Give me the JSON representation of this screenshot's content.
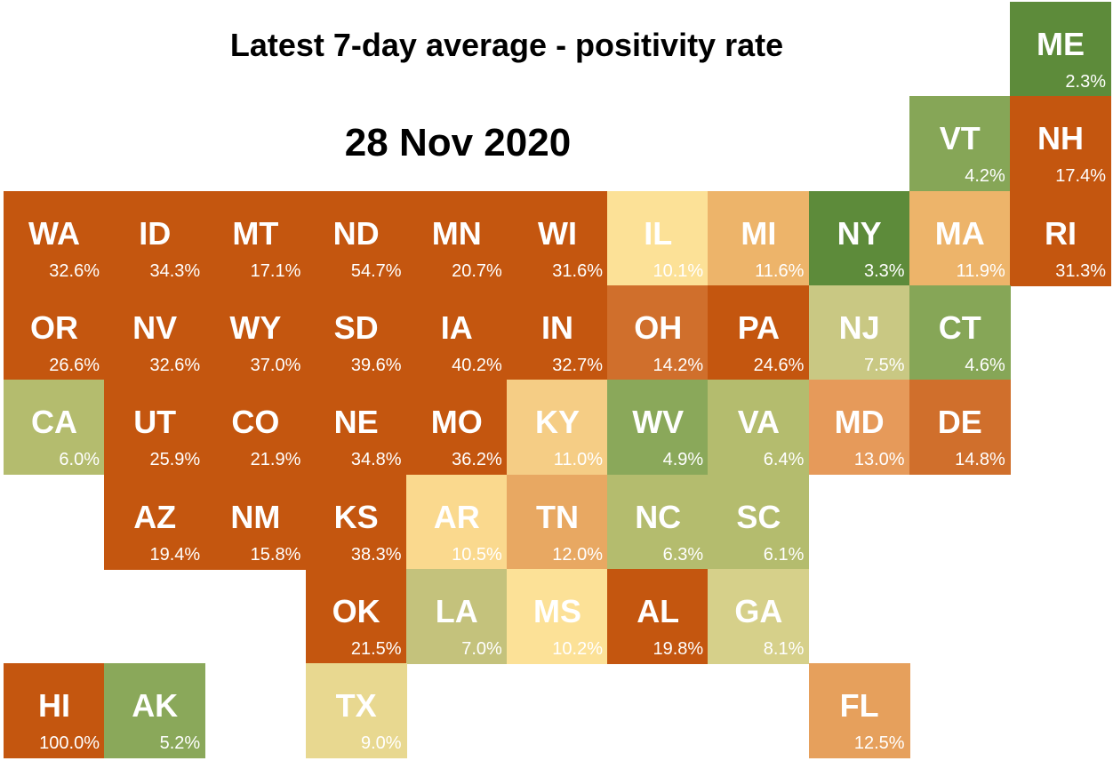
{
  "title": "Latest 7-day average - positivity rate",
  "date": "28 Nov 2020",
  "colors": {
    "high": "#c4560f",
    "orange": "#d06f2c",
    "light_orange": "#e69a5a",
    "tan": "#edb46a",
    "light_tan": "#f5cd85",
    "pale_yellow": "#fce197",
    "khaki": "#c9c883",
    "light_green": "#b4bc6e",
    "green": "#8aa85a",
    "dark_green": "#5d8b3a"
  },
  "states": [
    {
      "abbr": "ME",
      "value": "2.3%",
      "color": "#5d8b3a"
    },
    {
      "abbr": "VT",
      "value": "4.2%",
      "color": "#86a657"
    },
    {
      "abbr": "NH",
      "value": "17.4%",
      "color": "#c4560f"
    },
    {
      "abbr": "WA",
      "value": "32.6%",
      "color": "#c4560f"
    },
    {
      "abbr": "ID",
      "value": "34.3%",
      "color": "#c4560f"
    },
    {
      "abbr": "MT",
      "value": "17.1%",
      "color": "#c4560f"
    },
    {
      "abbr": "ND",
      "value": "54.7%",
      "color": "#c4560f"
    },
    {
      "abbr": "MN",
      "value": "20.7%",
      "color": "#c4560f"
    },
    {
      "abbr": "WI",
      "value": "31.6%",
      "color": "#c4560f"
    },
    {
      "abbr": "IL",
      "value": "10.1%",
      "color": "#fce197"
    },
    {
      "abbr": "MI",
      "value": "11.6%",
      "color": "#edb46a"
    },
    {
      "abbr": "NY",
      "value": "3.3%",
      "color": "#5d8b3a"
    },
    {
      "abbr": "MA",
      "value": "11.9%",
      "color": "#edb46a"
    },
    {
      "abbr": "RI",
      "value": "31.3%",
      "color": "#c4560f"
    },
    {
      "abbr": "OR",
      "value": "26.6%",
      "color": "#c4560f"
    },
    {
      "abbr": "NV",
      "value": "32.6%",
      "color": "#c4560f"
    },
    {
      "abbr": "WY",
      "value": "37.0%",
      "color": "#c4560f"
    },
    {
      "abbr": "SD",
      "value": "39.6%",
      "color": "#c4560f"
    },
    {
      "abbr": "IA",
      "value": "40.2%",
      "color": "#c4560f"
    },
    {
      "abbr": "IN",
      "value": "32.7%",
      "color": "#c4560f"
    },
    {
      "abbr": "OH",
      "value": "14.2%",
      "color": "#d06f2c"
    },
    {
      "abbr": "PA",
      "value": "24.6%",
      "color": "#c4560f"
    },
    {
      "abbr": "NJ",
      "value": "7.5%",
      "color": "#c9c883"
    },
    {
      "abbr": "CT",
      "value": "4.6%",
      "color": "#86a657"
    },
    {
      "abbr": "CA",
      "value": "6.0%",
      "color": "#b4bc6e"
    },
    {
      "abbr": "UT",
      "value": "25.9%",
      "color": "#c4560f"
    },
    {
      "abbr": "CO",
      "value": "21.9%",
      "color": "#c4560f"
    },
    {
      "abbr": "NE",
      "value": "34.8%",
      "color": "#c4560f"
    },
    {
      "abbr": "MO",
      "value": "36.2%",
      "color": "#c4560f"
    },
    {
      "abbr": "KY",
      "value": "11.0%",
      "color": "#f5cd85"
    },
    {
      "abbr": "WV",
      "value": "4.9%",
      "color": "#8aa85a"
    },
    {
      "abbr": "VA",
      "value": "6.4%",
      "color": "#b4bc6e"
    },
    {
      "abbr": "MD",
      "value": "13.0%",
      "color": "#e69a5a"
    },
    {
      "abbr": "DE",
      "value": "14.8%",
      "color": "#d06f2c"
    },
    {
      "abbr": "AZ",
      "value": "19.4%",
      "color": "#c4560f"
    },
    {
      "abbr": "NM",
      "value": "15.8%",
      "color": "#c4560f"
    },
    {
      "abbr": "KS",
      "value": "38.3%",
      "color": "#c4560f"
    },
    {
      "abbr": "AR",
      "value": "10.5%",
      "color": "#fad98e"
    },
    {
      "abbr": "TN",
      "value": "12.0%",
      "color": "#e8a862"
    },
    {
      "abbr": "NC",
      "value": "6.3%",
      "color": "#b4bc6e"
    },
    {
      "abbr": "SC",
      "value": "6.1%",
      "color": "#b4bc6e"
    },
    {
      "abbr": "OK",
      "value": "21.5%",
      "color": "#c4560f"
    },
    {
      "abbr": "LA",
      "value": "7.0%",
      "color": "#c4c27c"
    },
    {
      "abbr": "MS",
      "value": "10.2%",
      "color": "#fce197"
    },
    {
      "abbr": "AL",
      "value": "19.8%",
      "color": "#c4560f"
    },
    {
      "abbr": "GA",
      "value": "8.1%",
      "color": "#d6d08a"
    },
    {
      "abbr": "HI",
      "value": "100.0%",
      "color": "#c4560f"
    },
    {
      "abbr": "AK",
      "value": "5.2%",
      "color": "#8aa85a"
    },
    {
      "abbr": "TX",
      "value": "9.0%",
      "color": "#e8d890"
    },
    {
      "abbr": "FL",
      "value": "12.5%",
      "color": "#e6a05c"
    }
  ]
}
